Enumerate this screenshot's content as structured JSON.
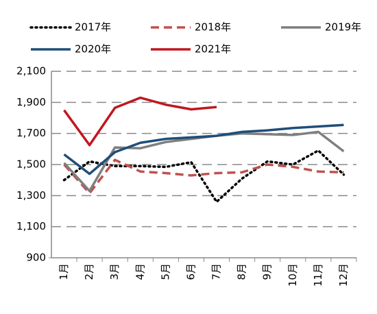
{
  "chart_data": {
    "type": "line",
    "categories": [
      "1月",
      "2月",
      "3月",
      "4月",
      "5月",
      "6月",
      "7月",
      "8月",
      "9月",
      "10月",
      "11月",
      "12月"
    ],
    "series": [
      {
        "name": "2017年",
        "color": "#000000",
        "dash": "dotted",
        "values": [
          1400,
          1520,
          1490,
          1490,
          1485,
          1515,
          1260,
          1410,
          1520,
          1500,
          1590,
          1435
        ]
      },
      {
        "name": "2018年",
        "color": "#c0504d",
        "dash": "dashed",
        "values": [
          1500,
          1315,
          1530,
          1455,
          1445,
          1430,
          1445,
          1450,
          1500,
          1485,
          1455,
          1450
        ]
      },
      {
        "name": "2019年",
        "color": "#7f7f7f",
        "dash": "solid",
        "values": [
          1510,
          1330,
          1610,
          1605,
          1645,
          1665,
          1685,
          1700,
          1695,
          1690,
          1710,
          1585
        ]
      },
      {
        "name": "2020年",
        "color": "#1f4e79",
        "dash": "solid",
        "values": [
          1565,
          1440,
          1580,
          1640,
          1665,
          1675,
          1685,
          1710,
          1720,
          1735,
          1745,
          1755
        ]
      },
      {
        "name": "2021年",
        "color": "#c0171f",
        "dash": "solid",
        "values": [
          1850,
          1625,
          1865,
          1930,
          1885,
          1855,
          1870,
          null,
          null,
          null,
          null,
          null
        ]
      }
    ],
    "ylim": [
      900,
      2100
    ],
    "yticks": [
      900,
      {
        "value": 1100,
        "label": "1,100"
      },
      {
        "value": 1300,
        "label": "1,300"
      },
      {
        "value": 1500,
        "label": "1,500"
      },
      {
        "value": 1700,
        "label": "1,700"
      },
      {
        "value": 1900,
        "label": "1,900"
      },
      {
        "value": 2100,
        "label": "2,100"
      }
    ],
    "grid": true,
    "legend": "top"
  }
}
